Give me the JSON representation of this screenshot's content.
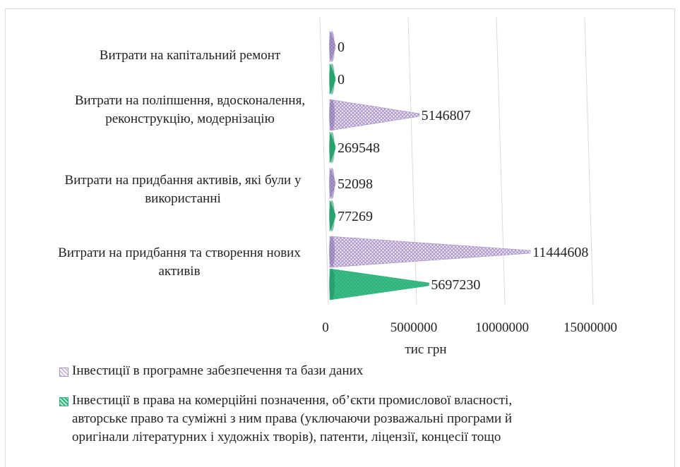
{
  "chart_data": {
    "type": "bar",
    "orientation": "horizontal",
    "style": "3d-cone",
    "categories": [
      "Витрати на капітальний ремонт",
      "Витрати  на поліпшення, вдосконалення, реконструкцію, модернізацію",
      "Витрати  на придбання активів, які були у використанні",
      "Витрати на придбання та створення нових активів"
    ],
    "series": [
      {
        "name": "Інвестиції в програмне забезпечення та бази даних",
        "color": "#a48fc7",
        "pattern": "crosshatch",
        "values": [
          0,
          5146807,
          52098,
          11444608
        ]
      },
      {
        "name": "Інвестиції в права на комерційні позначення, об’єкти промислової власності, авторське право та суміжні з ним права (уключаючи розважальні програми й оригінали літературних і художніх творів), патенти, ліцензії, концесії тощо",
        "color": "#2fb07c",
        "pattern": "crosshatch",
        "values": [
          0,
          269548,
          77269,
          5697230
        ]
      }
    ],
    "data_labels": [
      [
        "0",
        "5146807",
        "52098",
        "11444608"
      ],
      [
        "0",
        "269548",
        "77269",
        "5697230"
      ]
    ],
    "xlabel": "тис грн",
    "xlim": [
      0,
      15000000
    ],
    "x_ticks": [
      "0",
      "5000000",
      "10000000",
      "15000000"
    ],
    "grid": true,
    "legend_position": "bottom"
  }
}
